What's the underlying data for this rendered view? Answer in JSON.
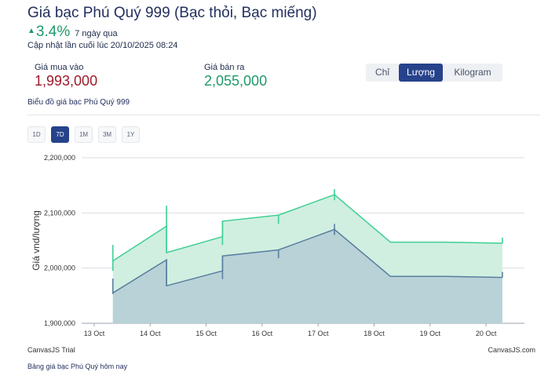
{
  "header": {
    "title": "Giá bạc Phú Quý 999 (Bạc thỏi, Bạc miếng)",
    "change_arrow": "▲",
    "change_value": "3.4%",
    "change_period": "7 ngày qua",
    "updated": "Cập nhật lần cuối lúc 20/10/2025 08:24"
  },
  "prices": {
    "buy_label": "Giá mua vào",
    "buy_value": "1,993,000",
    "sell_label": "Giá bán ra",
    "sell_value": "2,055,000"
  },
  "unit_tabs": [
    {
      "label": "Chỉ",
      "active": false
    },
    {
      "label": "Lượng",
      "active": true
    },
    {
      "label": "Kilogram",
      "active": false
    }
  ],
  "chart_caption": "Biểu đồ giá bạc Phú Quý 999",
  "ranges": [
    {
      "label": "1D",
      "active": false
    },
    {
      "label": "7D",
      "active": true
    },
    {
      "label": "1M",
      "active": false
    },
    {
      "label": "3M",
      "active": false
    },
    {
      "label": "1Y",
      "active": false
    }
  ],
  "chart_data": {
    "type": "area",
    "title": "",
    "ylabel": "Giá vnd/lượng",
    "xlabel": "",
    "x_ticks": [
      "13 Oct",
      "14 Oct",
      "15 Oct",
      "16 Oct",
      "17 Oct",
      "18 Oct",
      "19 Oct",
      "20 Oct"
    ],
    "y_ticks": [
      "1,900,000",
      "2,000,000",
      "2,100,000",
      "2,200,000"
    ],
    "ylim": [
      1900000,
      2200000
    ],
    "xlim_days": [
      "13 Oct",
      "20 Oct"
    ],
    "grid": true,
    "legend_position": "bottom-center",
    "series": [
      {
        "name": "Giá mua vào",
        "color": "#5a7ea0",
        "fill": "#b6d0d6",
        "points": [
          {
            "x": "2025-10-13 08:00",
            "y": 1955000,
            "open": 1981000,
            "close": 1953000
          },
          {
            "x": "2025-10-14 07:00",
            "y": 2015000,
            "open": 2015000,
            "close": 2015000
          },
          {
            "x": "2025-10-14 07:00",
            "y": 1968000,
            "open": 2015000,
            "close": 1968000
          },
          {
            "x": "2025-10-15 07:00",
            "y": 1995000,
            "open": 1995000,
            "close": 1995000
          },
          {
            "x": "2025-10-15 07:00",
            "y": 2022000,
            "open": 1980000,
            "close": 2022000
          },
          {
            "x": "2025-10-16 07:00",
            "y": 2033000,
            "open": 2018000,
            "close": 2033000
          },
          {
            "x": "2025-10-17 07:00",
            "y": 2070000,
            "open": 2080000,
            "close": 2060000
          },
          {
            "x": "2025-10-18 07:00",
            "y": 1985000,
            "open": 1985000,
            "close": 1985000
          },
          {
            "x": "2025-10-19 07:00",
            "y": 1985000,
            "open": 1985000,
            "close": 1985000
          },
          {
            "x": "2025-10-20 07:00",
            "y": 1983000,
            "open": 1983000,
            "close": 1993000
          }
        ]
      },
      {
        "name": "Giá bán ra",
        "color": "#3fcf93",
        "fill": "#cdeede",
        "points": [
          {
            "x": "2025-10-13 08:00",
            "y": 2013000,
            "open": 2042000,
            "close": 1995000
          },
          {
            "x": "2025-10-14 07:00",
            "y": 2076000,
            "open": 2113000,
            "close": 2076000
          },
          {
            "x": "2025-10-14 07:00",
            "y": 2028000,
            "open": 2076000,
            "close": 2028000
          },
          {
            "x": "2025-10-15 07:00",
            "y": 2057000,
            "open": 2057000,
            "close": 2057000
          },
          {
            "x": "2025-10-15 07:00",
            "y": 2085000,
            "open": 2042000,
            "close": 2085000
          },
          {
            "x": "2025-10-16 07:00",
            "y": 2096000,
            "open": 2080000,
            "close": 2096000
          },
          {
            "x": "2025-10-17 07:00",
            "y": 2133000,
            "open": 2143000,
            "close": 2123000
          },
          {
            "x": "2025-10-18 07:00",
            "y": 2047000,
            "open": 2047000,
            "close": 2047000
          },
          {
            "x": "2025-10-19 07:00",
            "y": 2047000,
            "open": 2047000,
            "close": 2047000
          },
          {
            "x": "2025-10-20 07:00",
            "y": 2045000,
            "open": 2045000,
            "close": 2055000
          }
        ]
      }
    ]
  },
  "credits": {
    "left": "CanvasJS Trial",
    "right": "CanvasJS.com"
  },
  "footer_link": "Bảng giá bạc Phú Quý hôm nay"
}
